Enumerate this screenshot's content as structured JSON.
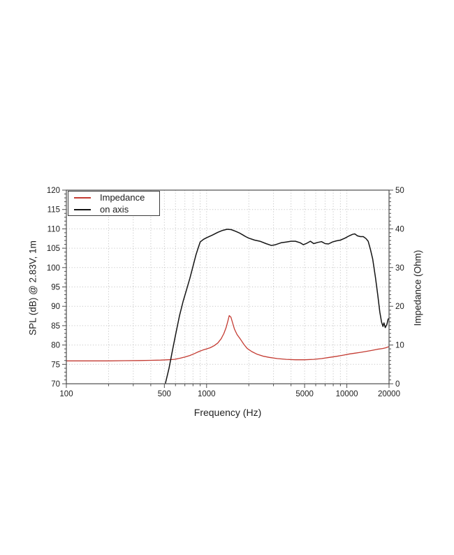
{
  "chart": {
    "axes": {
      "x_title": "Frequency (Hz)",
      "y_left_title": "SPL (dB) @ 2.83V, 1m",
      "y_right_title": "Impedance (Ohm)"
    },
    "legend": {
      "items": [
        {
          "label": "Impedance"
        },
        {
          "label": "on axis"
        }
      ]
    },
    "colors": {
      "impedance_line": "#c43b32",
      "spl_line": "#141414",
      "grid": "#c6c6c6",
      "frame": "#4d4d4d",
      "tick_text": "#1c1c1c"
    }
  },
  "chart_data": {
    "type": "line",
    "title": "",
    "x_axis": {
      "label": "Frequency (Hz)",
      "scale": "log",
      "min": 100,
      "max": 20000,
      "ticks": [
        100,
        500,
        1000,
        5000,
        10000,
        20000
      ],
      "tick_labels": [
        "100",
        "500",
        "1000",
        "5000",
        "10000",
        "20000"
      ],
      "minor_ticks": [
        200,
        300,
        400,
        600,
        700,
        800,
        900,
        2000,
        3000,
        4000,
        6000,
        7000,
        8000,
        9000
      ],
      "gridlines": [
        200,
        300,
        400,
        500,
        600,
        700,
        800,
        900,
        1000,
        2000,
        3000,
        4000,
        5000,
        6000,
        7000,
        8000,
        9000,
        10000
      ]
    },
    "y_left": {
      "label": "SPL (dB) @ 2.83V, 1m",
      "min": 70,
      "max": 120,
      "ticks": [
        70,
        75,
        80,
        85,
        90,
        95,
        100,
        105,
        110,
        115,
        120
      ],
      "minor_step": 1
    },
    "y_right": {
      "label": "Impedance (Ohm)",
      "min": 0,
      "max": 50,
      "ticks": [
        0,
        10,
        20,
        30,
        40,
        50
      ],
      "minor_step": 1
    },
    "grid": "dotted",
    "legend_position": "upper-left",
    "series": [
      {
        "name": "Impedance",
        "axis": "right",
        "unit": "Ohm",
        "color": "#c43b32",
        "width": 1.3,
        "points": [
          [
            100,
            5.9
          ],
          [
            140,
            5.9
          ],
          [
            200,
            5.9
          ],
          [
            260,
            5.95
          ],
          [
            330,
            6.0
          ],
          [
            400,
            6.05
          ],
          [
            470,
            6.1
          ],
          [
            530,
            6.2
          ],
          [
            590,
            6.3
          ],
          [
            650,
            6.6
          ],
          [
            700,
            6.9
          ],
          [
            760,
            7.3
          ],
          [
            820,
            7.8
          ],
          [
            880,
            8.3
          ],
          [
            940,
            8.7
          ],
          [
            1000,
            9.0
          ],
          [
            1060,
            9.3
          ],
          [
            1130,
            9.8
          ],
          [
            1200,
            10.5
          ],
          [
            1270,
            11.6
          ],
          [
            1330,
            13.0
          ],
          [
            1380,
            14.6
          ],
          [
            1420,
            16.3
          ],
          [
            1450,
            17.6
          ],
          [
            1490,
            17.2
          ],
          [
            1530,
            15.8
          ],
          [
            1580,
            14.1
          ],
          [
            1650,
            12.7
          ],
          [
            1750,
            11.4
          ],
          [
            1850,
            10.1
          ],
          [
            1950,
            9.1
          ],
          [
            2100,
            8.3
          ],
          [
            2300,
            7.6
          ],
          [
            2550,
            7.1
          ],
          [
            2800,
            6.8
          ],
          [
            3200,
            6.5
          ],
          [
            3700,
            6.3
          ],
          [
            4300,
            6.2
          ],
          [
            5000,
            6.2
          ],
          [
            5800,
            6.3
          ],
          [
            6600,
            6.5
          ],
          [
            7500,
            6.8
          ],
          [
            8500,
            7.1
          ],
          [
            9500,
            7.4
          ],
          [
            10500,
            7.7
          ],
          [
            11500,
            7.9
          ],
          [
            12500,
            8.1
          ],
          [
            13500,
            8.3
          ],
          [
            15000,
            8.6
          ],
          [
            16500,
            8.9
          ],
          [
            18000,
            9.1
          ],
          [
            19000,
            9.3
          ],
          [
            20000,
            9.6
          ]
        ]
      },
      {
        "name": "on axis",
        "axis": "left",
        "unit": "dB",
        "color": "#141414",
        "width": 1.5,
        "points": [
          [
            478,
            65.5
          ],
          [
            508,
            70
          ],
          [
            540,
            74
          ],
          [
            570,
            78.5
          ],
          [
            600,
            82.5
          ],
          [
            640,
            87.5
          ],
          [
            680,
            91.3
          ],
          [
            720,
            94.3
          ],
          [
            760,
            97.2
          ],
          [
            800,
            100.3
          ],
          [
            840,
            103.3
          ],
          [
            870,
            105.0
          ],
          [
            900,
            106.6
          ],
          [
            950,
            107.3
          ],
          [
            1000,
            107.7
          ],
          [
            1100,
            108.4
          ],
          [
            1200,
            109.1
          ],
          [
            1300,
            109.6
          ],
          [
            1400,
            109.9
          ],
          [
            1500,
            109.8
          ],
          [
            1600,
            109.4
          ],
          [
            1700,
            109.0
          ],
          [
            1800,
            108.5
          ],
          [
            1900,
            108.0
          ],
          [
            2000,
            107.6
          ],
          [
            2200,
            107.1
          ],
          [
            2400,
            106.8
          ],
          [
            2650,
            106.2
          ],
          [
            2900,
            105.7
          ],
          [
            3100,
            105.9
          ],
          [
            3400,
            106.4
          ],
          [
            3700,
            106.6
          ],
          [
            4000,
            106.8
          ],
          [
            4300,
            106.8
          ],
          [
            4650,
            106.4
          ],
          [
            4900,
            105.9
          ],
          [
            5200,
            106.3
          ],
          [
            5500,
            106.8
          ],
          [
            5800,
            106.2
          ],
          [
            6200,
            106.5
          ],
          [
            6600,
            106.7
          ],
          [
            7000,
            106.2
          ],
          [
            7400,
            106.1
          ],
          [
            7900,
            106.6
          ],
          [
            8400,
            106.9
          ],
          [
            9000,
            107.1
          ],
          [
            9700,
            107.6
          ],
          [
            10400,
            108.2
          ],
          [
            11000,
            108.6
          ],
          [
            11400,
            108.7
          ],
          [
            11900,
            108.2
          ],
          [
            12500,
            108.0
          ],
          [
            13100,
            108.0
          ],
          [
            13700,
            107.5
          ],
          [
            14200,
            106.8
          ],
          [
            14700,
            104.8
          ],
          [
            15300,
            102.2
          ],
          [
            16000,
            97.5
          ],
          [
            16600,
            93.0
          ],
          [
            17200,
            88.5
          ],
          [
            17700,
            85.9
          ],
          [
            18100,
            84.8
          ],
          [
            18400,
            85.7
          ],
          [
            18800,
            84.5
          ],
          [
            19300,
            85.3
          ],
          [
            19700,
            86.7
          ],
          [
            20000,
            86.9
          ]
        ]
      }
    ]
  }
}
